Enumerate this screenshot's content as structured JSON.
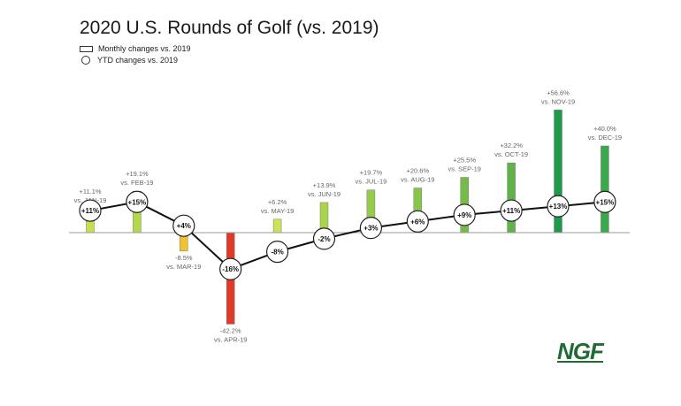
{
  "chart_data": {
    "type": "bar",
    "title": "2020 U.S. Rounds of Golf (vs. 2019)",
    "legend": {
      "bar_label": "Monthly changes vs. 2019",
      "circle_label": "YTD changes vs. 2019",
      "placement": "top-left"
    },
    "categories": [
      "vs. JAN-19",
      "vs. FEB-19",
      "vs. MAR-19",
      "vs. APR-19",
      "vs. MAY-19",
      "vs. JUN-19",
      "vs. JUL-19",
      "vs. AUG-19",
      "vs. SEP-19",
      "vs. OCT-19",
      "vs. NOV-19",
      "vs. DEC-19"
    ],
    "monthly_labels": [
      "+11.1%",
      "+19.1%",
      "-8.5%",
      "-42.2%",
      "+6.2%",
      "+13.9%",
      "+19.7%",
      "+20.6%",
      "+25.5%",
      "+32.2%",
      "+56.6%",
      "+40.0%"
    ],
    "monthly_values": [
      11.1,
      19.1,
      -8.5,
      -42.2,
      6.2,
      13.9,
      19.7,
      20.6,
      25.5,
      32.2,
      56.6,
      40.0
    ],
    "ytd_labels": [
      "+11%",
      "+15%",
      "+4%",
      "-16%",
      "-8%",
      "-2%",
      "+3%",
      "+6%",
      "+9%",
      "+11%",
      "+13%",
      "+15%"
    ],
    "ytd_values": [
      11,
      15,
      4,
      -16,
      -8,
      -2,
      3,
      6,
      9,
      11,
      13,
      15
    ],
    "bar_colors": [
      "#c5e04a",
      "#b2d94a",
      "#f2c230",
      "#e03a28",
      "#cbe35a",
      "#a7d44a",
      "#95cd4a",
      "#87c64a",
      "#74bc48",
      "#5fb34a",
      "#1e9a4a",
      "#3aa84c"
    ],
    "line_color": "#111111",
    "grid": false
  },
  "logo": {
    "text": "NGF",
    "color": "#1f6b34"
  }
}
